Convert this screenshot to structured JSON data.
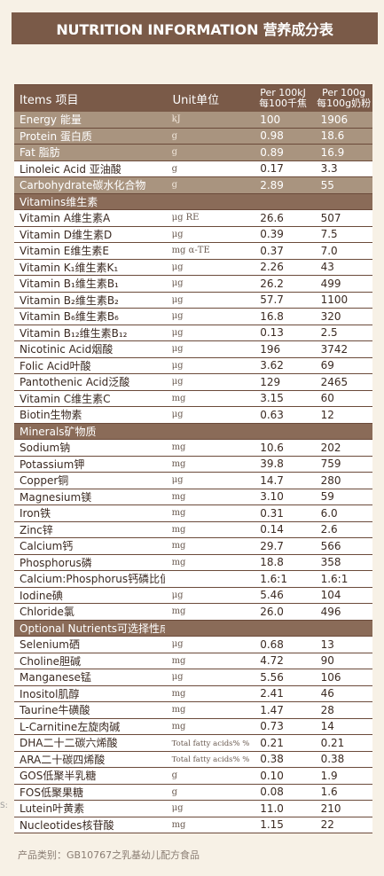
{
  "title": "NUTRITION INFORMATION 营养成分表",
  "columns": {
    "item": "Items 项目",
    "unit": "Unit单位",
    "per100kj_1": "Per 100kJ",
    "per100kj_2": "每100千焦",
    "per100g_1": "Per 100g",
    "per100g_2": "每100g奶粉"
  },
  "rows": [
    {
      "type": "shade",
      "name": "Energy 能量",
      "unit": "kJ",
      "a": "100",
      "b": "1906"
    },
    {
      "type": "shade",
      "name": "Protein 蛋白质",
      "unit": "g",
      "a": "0.98",
      "b": "18.6"
    },
    {
      "type": "shade",
      "name": "Fat 脂肪",
      "unit": "g",
      "a": "0.89",
      "b": "16.9"
    },
    {
      "type": "white",
      "name": " Linoleic Acid 亚油酸",
      "unit": "g",
      "a": "0.17",
      "b": "3.3"
    },
    {
      "type": "shade",
      "name": "Carbohydrate碳水化合物",
      "unit": "g",
      "a": "2.89",
      "b": "55"
    },
    {
      "type": "section",
      "name": "Vitamins维生素",
      "unit": "",
      "a": "",
      "b": ""
    },
    {
      "type": "white",
      "name": "Vitamin A维生素A",
      "unit": "μg  RE",
      "a": "26.6",
      "b": "507"
    },
    {
      "type": "white",
      "name": "Vitamin D维生素D",
      "unit": "μg",
      "a": "0.39",
      "b": "7.5"
    },
    {
      "type": "white",
      "name": "Vitamin E维生素E",
      "unit": "mg  α-TE",
      "a": "0.37",
      "b": "7.0"
    },
    {
      "type": "white",
      "name": "Vitamin K₁维生素K₁",
      "unit": "μg",
      "a": "2.26",
      "b": "43"
    },
    {
      "type": "white",
      "name": "Vitamin B₁维生素B₁",
      "unit": "μg",
      "a": "26.2",
      "b": "499"
    },
    {
      "type": "white",
      "name": "Vitamin B₂维生素B₂",
      "unit": "μg",
      "a": "57.7",
      "b": "1100"
    },
    {
      "type": "white",
      "name": "Vitamin B₆维生素B₆",
      "unit": "μg",
      "a": "16.8",
      "b": "320"
    },
    {
      "type": "white",
      "name": "Vitamin B₁₂维生素B₁₂",
      "unit": "μg",
      "a": "0.13",
      "b": "2.5"
    },
    {
      "type": "white",
      "name": "Nicotinic Acid烟酸",
      "unit": "μg",
      "a": "196",
      "b": "3742"
    },
    {
      "type": "white",
      "name": "Folic Acid叶酸",
      "unit": "μg",
      "a": "3.62",
      "b": "69"
    },
    {
      "type": "white",
      "name": "Pantothenic Acid泛酸",
      "unit": "μg",
      "a": "129",
      "b": "2465"
    },
    {
      "type": "white",
      "name": "Vitamin C维生素C",
      "unit": "mg",
      "a": "3.15",
      "b": "60"
    },
    {
      "type": "white",
      "name": "Biotin生物素",
      "unit": "μg",
      "a": "0.63",
      "b": "12"
    },
    {
      "type": "section",
      "name": "Minerals矿物质",
      "unit": "",
      "a": "",
      "b": ""
    },
    {
      "type": "white",
      "name": "Sodium钠",
      "unit": "mg",
      "a": "10.6",
      "b": "202"
    },
    {
      "type": "white",
      "name": "Potassium钾",
      "unit": "mg",
      "a": "39.8",
      "b": "759"
    },
    {
      "type": "white",
      "name": "Copper铜",
      "unit": "μg",
      "a": "14.7",
      "b": "280"
    },
    {
      "type": "white",
      "name": "Magnesium镁",
      "unit": "mg",
      "a": "3.10",
      "b": "59"
    },
    {
      "type": "white",
      "name": "Iron铁",
      "unit": "mg",
      "a": "0.31",
      "b": "6.0"
    },
    {
      "type": "white",
      "name": "Zinc锌",
      "unit": "mg",
      "a": "0.14",
      "b": "2.6"
    },
    {
      "type": "white",
      "name": "Calcium钙",
      "unit": "mg",
      "a": "29.7",
      "b": "566"
    },
    {
      "type": "white",
      "name": "Phosphorus磷",
      "unit": "mg",
      "a": "18.8",
      "b": "358"
    },
    {
      "type": "white",
      "name": "Calcium:Phosphorus钙磷比值",
      "unit": "",
      "a": "1.6:1",
      "b": "1.6:1"
    },
    {
      "type": "white",
      "name": "Iodine碘",
      "unit": "μg",
      "a": "5.46",
      "b": "104"
    },
    {
      "type": "white",
      "name": "Chloride氯",
      "unit": "mg",
      "a": "26.0",
      "b": "496"
    },
    {
      "type": "section",
      "name": "Optional Nutrients可选择性成分",
      "unit": "",
      "a": "",
      "b": ""
    },
    {
      "type": "white",
      "name": "Selenium硒",
      "unit": "μg",
      "a": "0.68",
      "b": "13"
    },
    {
      "type": "white",
      "name": "Choline胆碱",
      "unit": "mg",
      "a": "4.72",
      "b": "90"
    },
    {
      "type": "white",
      "name": "Manganese锰",
      "unit": "μg",
      "a": "5.56",
      "b": "106"
    },
    {
      "type": "white",
      "name": "Inositol肌醇",
      "unit": "mg",
      "a": "2.41",
      "b": "46"
    },
    {
      "type": "white",
      "name": "Taurine牛磺酸",
      "unit": "mg",
      "a": "1.47",
      "b": "28"
    },
    {
      "type": "white",
      "name": "L-Carnitine左旋肉碱",
      "unit": "mg",
      "a": "0.73",
      "b": "14"
    },
    {
      "type": "white",
      "name": "DHA二十二碳六烯酸",
      "unit": "Total fatty acids% %总脂肪酸",
      "a": "0.21",
      "b": "0.21"
    },
    {
      "type": "white",
      "name": "ARA二十碳四烯酸",
      "unit": "Total fatty acids% %总脂肪酸",
      "a": "0.38",
      "b": "0.38"
    },
    {
      "type": "white",
      "name": "GOS低聚半乳糖",
      "unit": "g",
      "a": "0.10",
      "b": "1.9"
    },
    {
      "type": "white",
      "name": "FOS低聚果糖",
      "unit": "g",
      "a": "0.08",
      "b": "1.6"
    },
    {
      "type": "white",
      "name": "Lutein叶黄素",
      "unit": "μg",
      "a": "11.0",
      "b": "210"
    },
    {
      "type": "white",
      "name": "Nucleotides核苷酸",
      "unit": "mg",
      "a": "1.15",
      "b": "22"
    }
  ],
  "footer": "产品类别：GB10767之乳基幼儿配方食品",
  "side_mark": "S:"
}
